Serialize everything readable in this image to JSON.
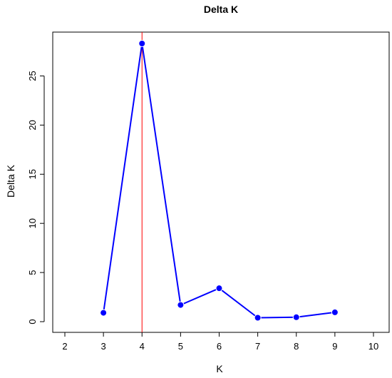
{
  "chart_data": {
    "type": "line",
    "title": "Delta K",
    "xlabel": "K",
    "ylabel": "Delta K",
    "xlim": [
      2,
      10
    ],
    "ylim": [
      0,
      28.3
    ],
    "x_ticks": [
      "2",
      "3",
      "4",
      "5",
      "6",
      "7",
      "8",
      "9",
      "10"
    ],
    "y_ticks": [
      "0",
      "5",
      "10",
      "15",
      "20",
      "25"
    ],
    "x": [
      3,
      4,
      5,
      6,
      7,
      8,
      9
    ],
    "values": [
      0.9,
      28.3,
      1.7,
      3.4,
      0.4,
      0.45,
      0.95
    ],
    "grid": false,
    "line_color": "#0000ff",
    "marker_color": "#0000ff",
    "vline": {
      "x": 4,
      "color": "#ff0000"
    }
  }
}
